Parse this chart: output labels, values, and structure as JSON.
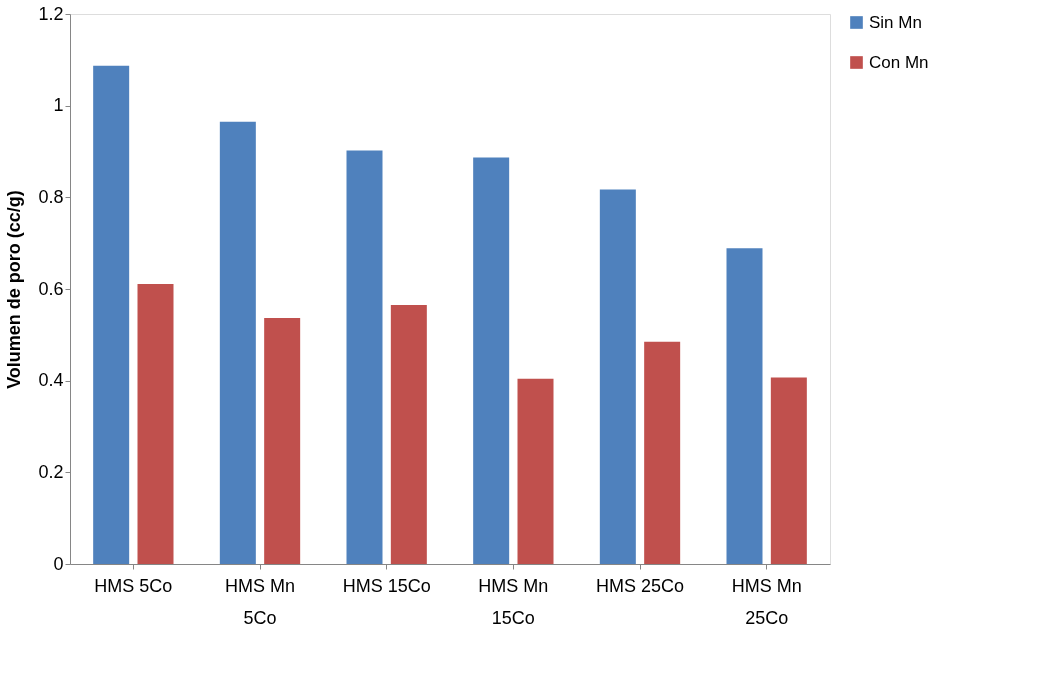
{
  "chart_data": {
    "type": "bar",
    "ylabel": "Volumen de poro (cc/g)",
    "categories": [
      "HMS 5Co",
      "HMS Mn 5Co",
      "HMS 15Co",
      "HMS Mn 15Co",
      "HMS 25Co",
      "HMS Mn 25Co"
    ],
    "series": [
      {
        "name": "Sin Mn",
        "color": "#4f81bd",
        "values": [
          1.087,
          0.965,
          0.902,
          0.887,
          0.817,
          0.689
        ]
      },
      {
        "name": "Con Mn",
        "color": "#c0504d",
        "values": [
          0.611,
          0.537,
          0.565,
          0.404,
          0.485,
          0.407
        ]
      }
    ],
    "ylim": [
      0,
      1.2
    ],
    "yticks": [
      0,
      0.2,
      0.4,
      0.6,
      0.8,
      1,
      1.2
    ],
    "grid": false,
    "legend": "right"
  }
}
